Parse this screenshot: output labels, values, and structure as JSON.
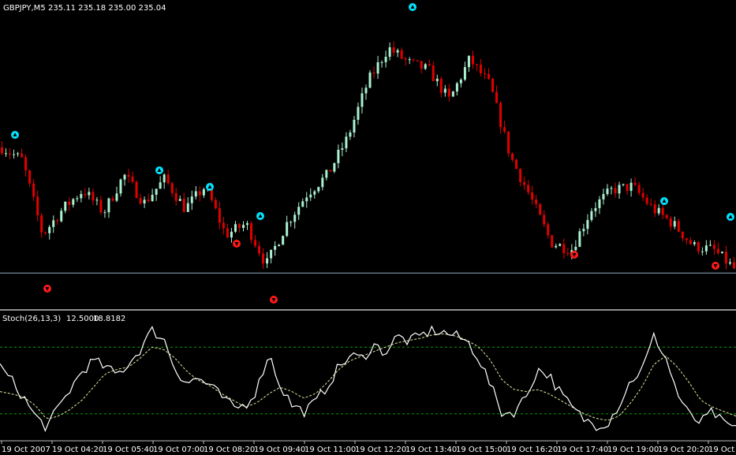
{
  "window": {
    "symbol_title": "GBPJPY,M5",
    "ohlc_readout": "235.11 235.18 235.00 235.04"
  },
  "indicator": {
    "title": "Stoch(26,13,3)",
    "main_value": "12.5000",
    "signal_value": "18.8182"
  },
  "colors": {
    "background": "#000000",
    "bull_candle": "#aaf0d1",
    "bear_candle": "#e00000",
    "up_arrow": "#00e5ff",
    "down_arrow": "#ff1a1a",
    "price_line": "#8fb0c8",
    "separator": "#c0c0c0",
    "stoch_main": "#ffffff",
    "stoch_signal": "#e6e6a0",
    "stoch_levels": "#00a000"
  },
  "icons": {
    "up_signal": "cyan-up-arrow-icon",
    "down_signal": "red-down-arrow-icon"
  },
  "chart_data": [
    {
      "type": "candlestick",
      "title": "GBPJPY,M5",
      "ylim": [
        234.6,
        238.5
      ],
      "horizontal_line": 235.04,
      "x": [
        "19 Oct 2007",
        "19 Oct 04:20",
        "19 Oct 05:40",
        "19 Oct 07:00",
        "19 Oct 08:20",
        "19 Oct 09:40",
        "19 Oct 11:00",
        "19 Oct 12:20",
        "19 Oct 13:40",
        "19 Oct 15:00",
        "19 Oct 16:20",
        "19 Oct 17:40",
        "19 Oct 19:00",
        "19 Oct 20:20",
        "19 Oct 21"
      ],
      "close_trend": [
        236.72,
        236.55,
        235.55,
        235.9,
        236.15,
        235.85,
        236.35,
        235.98,
        236.3,
        235.9,
        236.2,
        235.55,
        235.7,
        235.15,
        235.7,
        236.1,
        236.35,
        236.85,
        237.6,
        238.05,
        237.85,
        237.75,
        237.35,
        237.9,
        237.55,
        236.6,
        236.05,
        235.45,
        235.35,
        235.9,
        236.15,
        236.2,
        235.9,
        235.7,
        235.4,
        235.35,
        235.1
      ],
      "up_signals": [
        12,
        195,
        259,
        323,
        516,
        835,
        919
      ],
      "down_signals": [
        60,
        300,
        347,
        728,
        907
      ]
    },
    {
      "type": "line",
      "title": "Stoch(26,13,3)",
      "ylim": [
        0,
        100
      ],
      "levels": [
        80,
        20
      ],
      "series": [
        {
          "name": "main",
          "values": [
            62,
            50,
            35,
            18,
            8,
            25,
            42,
            58,
            68,
            62,
            55,
            65,
            78,
            95,
            88,
            60,
            48,
            52,
            45,
            35,
            25,
            28,
            42,
            75,
            45,
            28,
            22,
            30,
            45,
            62,
            72,
            70,
            82,
            75,
            90,
            85,
            90,
            95,
            93,
            90,
            85,
            70,
            45,
            20,
            22,
            35,
            60,
            55,
            38,
            25,
            15,
            10,
            12,
            28,
            50,
            60,
            90,
            70,
            38,
            18,
            12,
            22,
            10,
            8
          ]
        },
        {
          "name": "signal",
          "values": [
            40,
            38,
            35,
            28,
            15,
            18,
            24,
            32,
            44,
            56,
            60,
            62,
            70,
            80,
            78,
            70,
            58,
            50,
            45,
            38,
            32,
            26,
            30,
            38,
            44,
            40,
            34,
            38,
            48,
            60,
            68,
            72,
            76,
            80,
            84,
            86,
            88,
            91,
            92,
            90,
            86,
            80,
            68,
            50,
            42,
            40,
            42,
            38,
            32,
            26,
            20,
            16,
            14,
            18,
            30,
            45,
            65,
            72,
            62,
            48,
            32,
            26,
            22,
            18
          ]
        }
      ]
    }
  ]
}
